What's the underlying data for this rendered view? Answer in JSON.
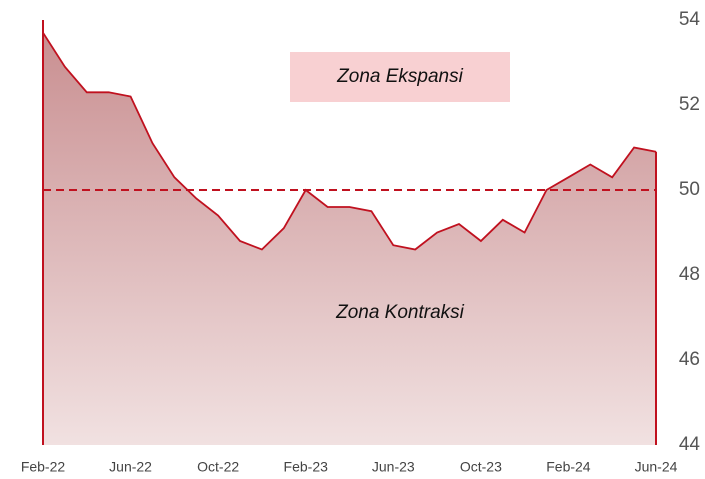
{
  "chart_data": {
    "type": "area",
    "categories": [
      "Feb-22",
      null,
      null,
      null,
      "Jun-22",
      null,
      null,
      null,
      "Oct-22",
      null,
      null,
      null,
      "Feb-23",
      null,
      null,
      null,
      "Jun-23",
      null,
      null,
      null,
      "Oct-23",
      null,
      null,
      null,
      "Feb-24",
      null,
      null,
      null,
      "Jun-24"
    ],
    "values": [
      53.7,
      52.9,
      52.3,
      52.3,
      52.2,
      51.1,
      50.3,
      49.8,
      49.4,
      48.8,
      48.6,
      49.1,
      50.0,
      49.6,
      49.6,
      49.5,
      48.7,
      48.6,
      49.0,
      49.2,
      48.8,
      49.3,
      49.0,
      50.0,
      50.3,
      50.6,
      50.3,
      51.0,
      50.9
    ],
    "color": "#c0111f",
    "ylim": [
      44,
      54
    ],
    "yticks": [
      44,
      46,
      48,
      50,
      52,
      54
    ],
    "y_axis_side": "right",
    "reference_line": 50,
    "annotations": [
      "Zona Ekspansi",
      "Zona Kontraksi"
    ],
    "grid": false
  }
}
